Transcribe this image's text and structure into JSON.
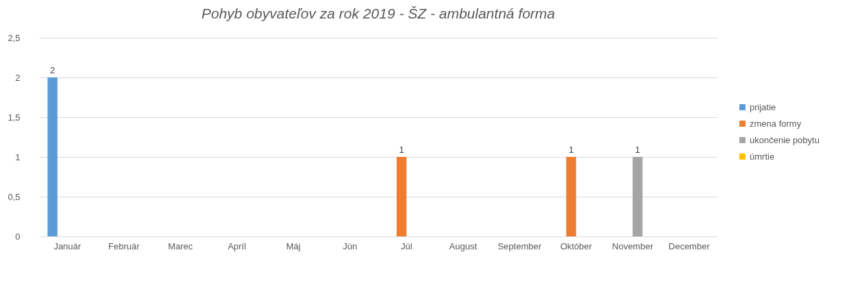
{
  "chart_data": {
    "type": "bar",
    "title": "Pohyb obyvateľov za rok 2019 - ŠZ - ambulantná forma",
    "categories": [
      "Január",
      "Február",
      "Marec",
      "Apríl",
      "Máj",
      "Jún",
      "Júl",
      "August",
      "September",
      "Október",
      "November",
      "December"
    ],
    "series": [
      {
        "name": "prijatie",
        "color": "#5b9bd5",
        "values": [
          2,
          0,
          0,
          0,
          0,
          0,
          0,
          0,
          0,
          0,
          0,
          0
        ],
        "value_labels": [
          "2",
          null,
          null,
          null,
          null,
          null,
          null,
          null,
          null,
          null,
          null,
          null
        ]
      },
      {
        "name": "zmena formy",
        "color": "#ed7d31",
        "values": [
          0,
          0,
          0,
          0,
          0,
          0,
          1,
          0,
          0,
          1,
          0,
          0
        ],
        "value_labels": [
          null,
          null,
          null,
          null,
          null,
          null,
          "1",
          null,
          null,
          "1",
          null,
          null
        ]
      },
      {
        "name": "ukončenie pobytu",
        "color": "#a5a5a5",
        "values": [
          0,
          0,
          0,
          0,
          0,
          0,
          0,
          0,
          0,
          0,
          1,
          0
        ],
        "value_labels": [
          null,
          null,
          null,
          null,
          null,
          null,
          null,
          null,
          null,
          null,
          "1",
          null
        ]
      },
      {
        "name": "úmrtie",
        "color": "#ffc000",
        "values": [
          0,
          0,
          0,
          0,
          0,
          0,
          0,
          0,
          0,
          0,
          0,
          0
        ],
        "value_labels": [
          null,
          null,
          null,
          null,
          null,
          null,
          null,
          null,
          null,
          null,
          null,
          null
        ]
      }
    ],
    "ylim": [
      0,
      2.5
    ],
    "yticks": [
      0,
      {
        "value": 0.5,
        "label": "0,5"
      },
      1,
      {
        "value": 1.5,
        "label": "1,5"
      },
      2,
      {
        "value": 2.5,
        "label": "2,5"
      }
    ],
    "grid": "y",
    "legend": "right"
  }
}
